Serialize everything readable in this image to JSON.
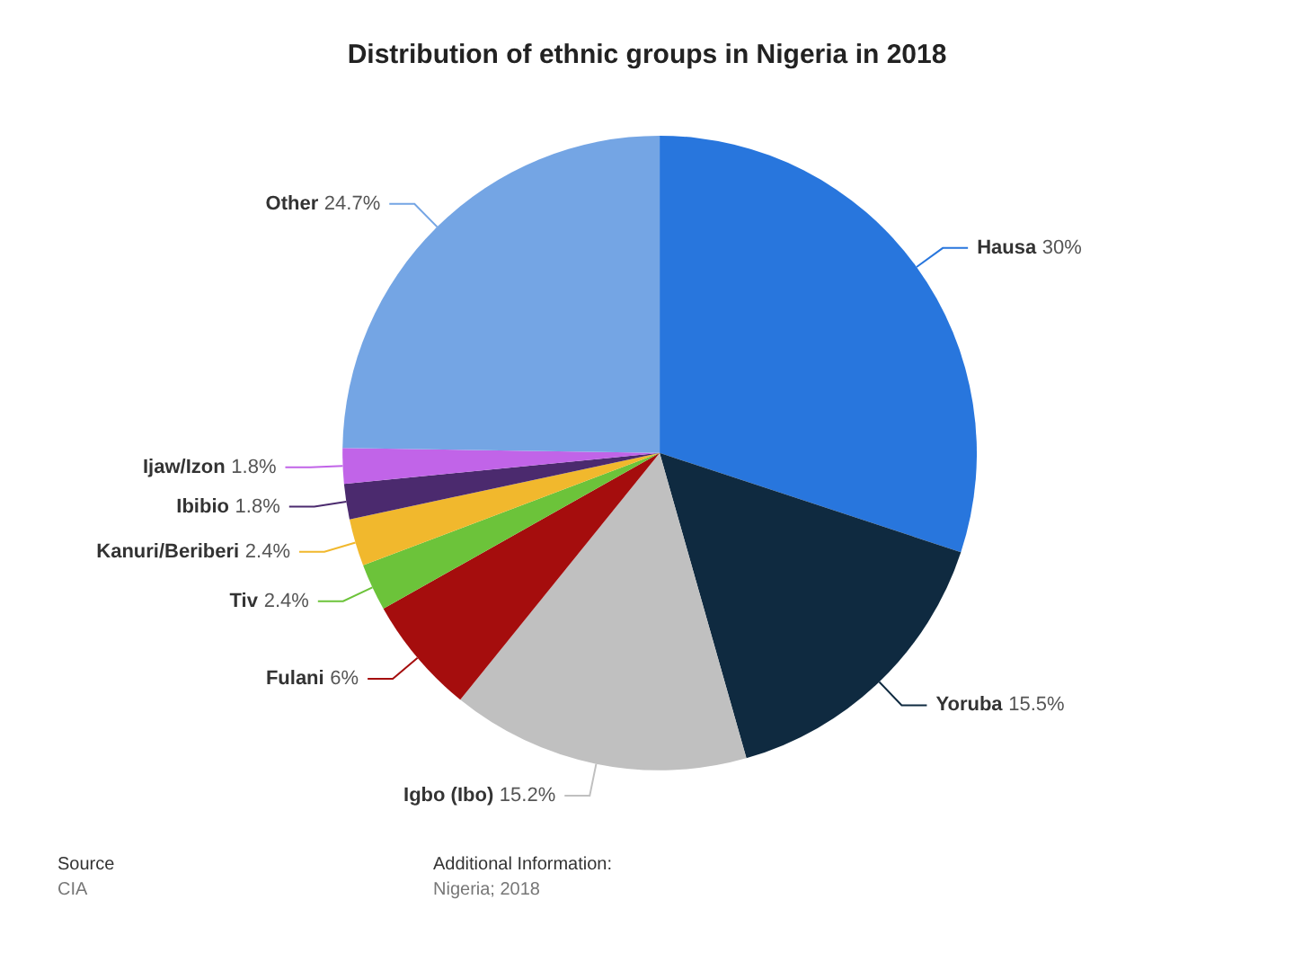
{
  "chart_data": {
    "type": "pie",
    "title": "Distribution of ethnic groups in Nigeria in 2018",
    "categories": [
      "Hausa",
      "Yoruba",
      "Igbo (Ibo)",
      "Fulani",
      "Tiv",
      "Kanuri/Beriberi",
      "Ibibio",
      "Ijaw/Izon",
      "Other"
    ],
    "values": [
      30,
      15.5,
      15.2,
      6,
      2.4,
      2.4,
      1.8,
      1.8,
      24.7
    ],
    "value_labels": [
      "30%",
      "15.5%",
      "15.2%",
      "6%",
      "2.4%",
      "2.4%",
      "1.8%",
      "1.8%",
      "24.7%"
    ],
    "colors": [
      "#2876dd",
      "#0f2a40",
      "#c0c0c0",
      "#a50d0d",
      "#6cc33a",
      "#f1b82d",
      "#4b2a6e",
      "#c164e8",
      "#74a5e4"
    ],
    "legend": false,
    "annotations": [
      "Source",
      "CIA",
      "Additional Information:",
      "Nigeria; 2018"
    ]
  }
}
